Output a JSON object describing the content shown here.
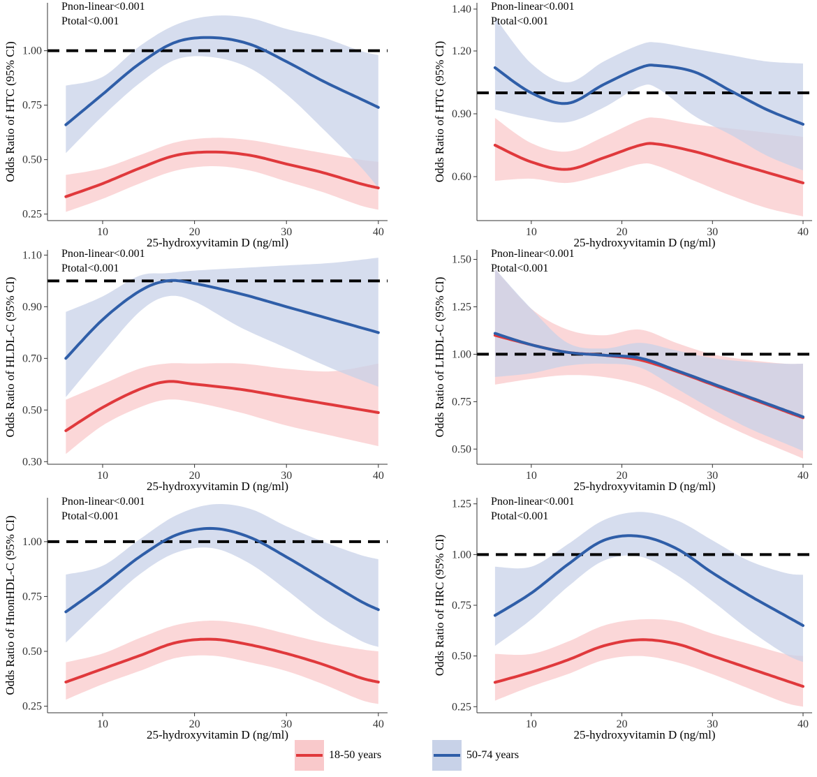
{
  "legend": [
    {
      "label": "18-50 years",
      "line_color": "#e0393c",
      "fill_color": "#f9c9cb"
    },
    {
      "label": "50-74 years",
      "line_color": "#2f5ea8",
      "fill_color": "#c8d2e8"
    }
  ],
  "chart_data": [
    {
      "type": "line",
      "ylabel": "Odds Ratio of HTC (95% CI)",
      "xlabel": "25-hydroxyvitamin D (ng/ml)",
      "annotations": [
        "Pnon-linear<0.001",
        "Ptotal<0.001"
      ],
      "xlim": [
        4,
        41
      ],
      "ylim": [
        0.22,
        1.22
      ],
      "xticks": [
        10,
        20,
        30,
        40
      ],
      "xtick_labels": [
        "10",
        "20",
        "30",
        "40"
      ],
      "yticks": [
        0.25,
        0.5,
        0.75,
        1.0
      ],
      "ytick_labels": [
        "0.25",
        "0.50",
        "0.75",
        "1.00"
      ],
      "reference_line": 1.0,
      "series": [
        {
          "name": "18-50 years",
          "x": [
            6,
            10,
            14,
            18,
            22,
            26,
            30,
            34,
            38,
            40
          ],
          "y": [
            0.33,
            0.39,
            0.46,
            0.52,
            0.535,
            0.52,
            0.48,
            0.44,
            0.39,
            0.37
          ],
          "lower": [
            0.26,
            0.32,
            0.39,
            0.45,
            0.47,
            0.45,
            0.4,
            0.35,
            0.29,
            0.27
          ],
          "upper": [
            0.43,
            0.46,
            0.52,
            0.58,
            0.6,
            0.59,
            0.56,
            0.53,
            0.5,
            0.49
          ]
        },
        {
          "name": "50-74 years",
          "x": [
            6,
            10,
            14,
            18,
            22,
            26,
            30,
            34,
            38,
            40
          ],
          "y": [
            0.66,
            0.8,
            0.94,
            1.04,
            1.06,
            1.03,
            0.95,
            0.86,
            0.78,
            0.74
          ],
          "lower": [
            0.53,
            0.7,
            0.85,
            0.96,
            0.97,
            0.92,
            0.8,
            0.64,
            0.47,
            0.37
          ],
          "upper": [
            0.84,
            0.88,
            1.02,
            1.12,
            1.16,
            1.15,
            1.1,
            1.06,
            1.0,
            0.98
          ]
        }
      ]
    },
    {
      "type": "line",
      "ylabel": "Odds Ratio of HTG (95% CI)",
      "xlabel": "25-hydroxyvitamin D (ng/ml)",
      "annotations": [
        "Pnon-linear<0.001",
        "Ptotal<0.001"
      ],
      "xlim": [
        4,
        41
      ],
      "ylim": [
        0.39,
        1.43
      ],
      "xticks": [
        10,
        20,
        30,
        40
      ],
      "xtick_labels": [
        "10",
        "20",
        "30",
        "40"
      ],
      "yticks": [
        0.6,
        0.9,
        1.2,
        1.4
      ],
      "ytick_labels": [
        "0.60",
        "0.90",
        "1.20",
        "1.40"
      ],
      "reference_line": 1.0,
      "series": [
        {
          "name": "18-50 years",
          "x": [
            6,
            10,
            14,
            18,
            22,
            24,
            28,
            32,
            36,
            40
          ],
          "y": [
            0.75,
            0.67,
            0.635,
            0.69,
            0.75,
            0.755,
            0.72,
            0.67,
            0.62,
            0.57
          ],
          "lower": [
            0.58,
            0.59,
            0.57,
            0.61,
            0.66,
            0.65,
            0.58,
            0.51,
            0.45,
            0.41
          ],
          "upper": [
            0.88,
            0.76,
            0.72,
            0.79,
            0.87,
            0.88,
            0.85,
            0.83,
            0.81,
            0.79
          ]
        },
        {
          "name": "50-74 years",
          "x": [
            6,
            10,
            14,
            18,
            22,
            24,
            28,
            32,
            36,
            40
          ],
          "y": [
            1.12,
            1.0,
            0.95,
            1.04,
            1.12,
            1.13,
            1.1,
            1.01,
            0.92,
            0.85
          ],
          "lower": [
            0.92,
            0.88,
            0.86,
            0.93,
            1.03,
            1.02,
            0.89,
            0.8,
            0.7,
            0.63
          ],
          "upper": [
            1.36,
            1.14,
            1.05,
            1.15,
            1.23,
            1.24,
            1.21,
            1.18,
            1.15,
            1.14
          ]
        }
      ]
    },
    {
      "type": "line",
      "ylabel": "Odds Ratio of HLDL-C (95% CI)",
      "xlabel": "25-hydroxyvitamin D (ng/ml)",
      "annotations": [
        "Pnon-linear<0.001",
        "Ptotal<0.001"
      ],
      "xlim": [
        4,
        41
      ],
      "ylim": [
        0.29,
        1.12
      ],
      "xticks": [
        10,
        20,
        30,
        40
      ],
      "xtick_labels": [
        "10",
        "20",
        "30",
        "40"
      ],
      "yticks": [
        0.3,
        0.5,
        0.7,
        0.9,
        1.1
      ],
      "ytick_labels": [
        "0.30",
        "0.50",
        "0.70",
        "0.90",
        "1.10"
      ],
      "reference_line": 1.0,
      "series": [
        {
          "name": "18-50 years",
          "x": [
            6,
            10,
            14,
            17,
            20,
            25,
            30,
            35,
            40
          ],
          "y": [
            0.42,
            0.51,
            0.58,
            0.61,
            0.6,
            0.58,
            0.55,
            0.52,
            0.49
          ],
          "lower": [
            0.33,
            0.44,
            0.51,
            0.54,
            0.53,
            0.49,
            0.44,
            0.4,
            0.36
          ],
          "upper": [
            0.54,
            0.6,
            0.66,
            0.68,
            0.68,
            0.68,
            0.66,
            0.65,
            0.68
          ]
        },
        {
          "name": "50-74 years",
          "x": [
            6,
            10,
            14,
            17,
            20,
            25,
            30,
            35,
            40
          ],
          "y": [
            0.7,
            0.85,
            0.96,
            1.0,
            0.99,
            0.95,
            0.9,
            0.85,
            0.8
          ],
          "lower": [
            0.55,
            0.72,
            0.88,
            0.94,
            0.92,
            0.82,
            0.74,
            0.66,
            0.59
          ],
          "upper": [
            0.88,
            0.94,
            1.02,
            1.03,
            1.04,
            1.05,
            1.06,
            1.07,
            1.09
          ]
        }
      ]
    },
    {
      "type": "line",
      "ylabel": "Odds Ratio of LHDL-C (95% CI)",
      "xlabel": "25-hydroxyvitamin D (ng/ml)",
      "annotations": [
        "Pnon-linear<0.001",
        "Ptotal<0.001"
      ],
      "xlim": [
        4,
        41
      ],
      "ylim": [
        0.42,
        1.55
      ],
      "xticks": [
        10,
        20,
        30,
        40
      ],
      "xtick_labels": [
        "10",
        "20",
        "30",
        "40"
      ],
      "yticks": [
        0.5,
        0.75,
        1.0,
        1.25,
        1.5
      ],
      "ytick_labels": [
        "0.50",
        "0.75",
        "1.00",
        "1.25",
        "1.50"
      ],
      "reference_line": 1.0,
      "series": [
        {
          "name": "18-50 years",
          "x": [
            6,
            10,
            14,
            18,
            22,
            26,
            30,
            34,
            38,
            40
          ],
          "y": [
            1.1,
            1.05,
            1.01,
            0.995,
            0.97,
            0.91,
            0.84,
            0.77,
            0.7,
            0.665
          ],
          "lower": [
            0.84,
            0.87,
            0.89,
            0.88,
            0.84,
            0.76,
            0.66,
            0.57,
            0.49,
            0.45
          ],
          "upper": [
            1.45,
            1.24,
            1.13,
            1.1,
            1.13,
            1.06,
            1.0,
            0.97,
            0.95,
            0.95
          ]
        },
        {
          "name": "50-74 years",
          "x": [
            6,
            10,
            14,
            18,
            22,
            26,
            30,
            34,
            38,
            40
          ],
          "y": [
            1.11,
            1.05,
            1.01,
            0.995,
            0.98,
            0.915,
            0.845,
            0.775,
            0.705,
            0.67
          ],
          "lower": [
            0.88,
            0.9,
            0.94,
            0.95,
            0.93,
            0.82,
            0.71,
            0.61,
            0.53,
            0.49
          ],
          "upper": [
            1.45,
            1.24,
            1.06,
            1.03,
            1.06,
            1.02,
            0.98,
            0.96,
            0.95,
            0.95
          ]
        }
      ]
    },
    {
      "type": "line",
      "ylabel": "Odds Ratio of HnonHDL-C (95% CI)",
      "xlabel": "25-hydroxyvitamin D (ng/ml)",
      "annotations": [
        "Pnon-linear<0.001",
        "Ptotal<0.001"
      ],
      "xlim": [
        4,
        41
      ],
      "ylim": [
        0.22,
        1.2
      ],
      "xticks": [
        10,
        20,
        30,
        40
      ],
      "xtick_labels": [
        "10",
        "20",
        "30",
        "40"
      ],
      "yticks": [
        0.25,
        0.5,
        0.75,
        1.0
      ],
      "ytick_labels": [
        "0.25",
        "0.50",
        "0.75",
        "1.00"
      ],
      "reference_line": 1.0,
      "series": [
        {
          "name": "18-50 years",
          "x": [
            6,
            10,
            14,
            18,
            22,
            26,
            30,
            34,
            38,
            40
          ],
          "y": [
            0.36,
            0.42,
            0.48,
            0.54,
            0.555,
            0.53,
            0.49,
            0.44,
            0.38,
            0.36
          ],
          "lower": [
            0.28,
            0.35,
            0.41,
            0.47,
            0.48,
            0.45,
            0.41,
            0.35,
            0.28,
            0.26
          ],
          "upper": [
            0.45,
            0.49,
            0.56,
            0.62,
            0.64,
            0.62,
            0.58,
            0.54,
            0.51,
            0.5
          ]
        },
        {
          "name": "50-74 years",
          "x": [
            6,
            10,
            14,
            18,
            22,
            26,
            30,
            34,
            38,
            40
          ],
          "y": [
            0.68,
            0.8,
            0.93,
            1.03,
            1.06,
            1.02,
            0.93,
            0.83,
            0.73,
            0.69
          ],
          "lower": [
            0.54,
            0.7,
            0.85,
            0.95,
            0.97,
            0.9,
            0.78,
            0.65,
            0.55,
            0.52
          ],
          "upper": [
            0.85,
            0.89,
            1.01,
            1.12,
            1.17,
            1.15,
            1.07,
            1.0,
            0.94,
            0.92
          ]
        }
      ]
    },
    {
      "type": "line",
      "ylabel": "Odds Ratio of HRC (95% CI)",
      "xlabel": "25-hydroxyvitamin D (ng/ml)",
      "annotations": [
        "Pnon-linear<0.001",
        "Ptotal<0.001"
      ],
      "xlim": [
        4,
        41
      ],
      "ylim": [
        0.22,
        1.28
      ],
      "xticks": [
        10,
        20,
        30,
        40
      ],
      "xtick_labels": [
        "10",
        "20",
        "30",
        "40"
      ],
      "yticks": [
        0.25,
        0.5,
        0.75,
        1.0,
        1.25
      ],
      "ytick_labels": [
        "0.25",
        "0.50",
        "0.75",
        "1.00",
        "1.25"
      ],
      "reference_line": 1.0,
      "series": [
        {
          "name": "18-50 years",
          "x": [
            6,
            10,
            14,
            18,
            22,
            26,
            30,
            34,
            38,
            40
          ],
          "y": [
            0.37,
            0.42,
            0.48,
            0.55,
            0.58,
            0.56,
            0.5,
            0.44,
            0.38,
            0.35
          ],
          "lower": [
            0.28,
            0.35,
            0.41,
            0.48,
            0.5,
            0.47,
            0.41,
            0.34,
            0.27,
            0.25
          ],
          "upper": [
            0.51,
            0.51,
            0.57,
            0.65,
            0.68,
            0.67,
            0.61,
            0.56,
            0.51,
            0.5
          ]
        },
        {
          "name": "50-74 years",
          "x": [
            6,
            10,
            14,
            18,
            22,
            26,
            30,
            34,
            38,
            40
          ],
          "y": [
            0.7,
            0.81,
            0.95,
            1.07,
            1.09,
            1.03,
            0.91,
            0.8,
            0.7,
            0.65
          ],
          "lower": [
            0.55,
            0.68,
            0.84,
            0.97,
            0.99,
            0.9,
            0.77,
            0.63,
            0.51,
            0.47
          ],
          "upper": [
            0.94,
            0.94,
            1.05,
            1.17,
            1.21,
            1.17,
            1.07,
            0.97,
            0.91,
            0.9
          ]
        }
      ]
    }
  ]
}
